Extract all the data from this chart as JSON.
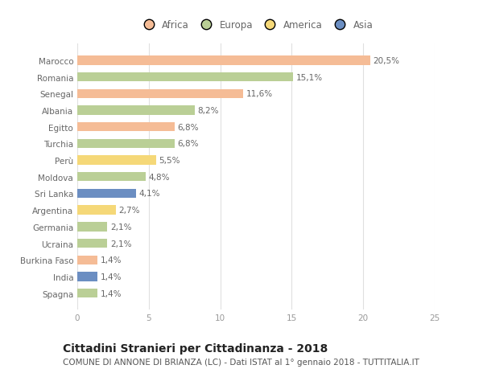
{
  "countries": [
    "Marocco",
    "Romania",
    "Senegal",
    "Albania",
    "Egitto",
    "Turchia",
    "Perù",
    "Moldova",
    "Sri Lanka",
    "Argentina",
    "Germania",
    "Ucraina",
    "Burkina Faso",
    "India",
    "Spagna"
  ],
  "values": [
    20.5,
    15.1,
    11.6,
    8.2,
    6.8,
    6.8,
    5.5,
    4.8,
    4.1,
    2.7,
    2.1,
    2.1,
    1.4,
    1.4,
    1.4
  ],
  "labels": [
    "20,5%",
    "15,1%",
    "11,6%",
    "8,2%",
    "6,8%",
    "6,8%",
    "5,5%",
    "4,8%",
    "4,1%",
    "2,7%",
    "2,1%",
    "2,1%",
    "1,4%",
    "1,4%",
    "1,4%"
  ],
  "continents": [
    "Africa",
    "Europa",
    "Africa",
    "Europa",
    "Africa",
    "Europa",
    "America",
    "Europa",
    "Asia",
    "America",
    "Europa",
    "Europa",
    "Africa",
    "Asia",
    "Europa"
  ],
  "colors": {
    "Africa": "#F5BC96",
    "Europa": "#BACF96",
    "America": "#F5D878",
    "Asia": "#6B8EC2"
  },
  "legend_order": [
    "Africa",
    "Europa",
    "America",
    "Asia"
  ],
  "xlim": [
    0,
    25
  ],
  "xticks": [
    0,
    5,
    10,
    15,
    20,
    25
  ],
  "title": "Cittadini Stranieri per Cittadinanza - 2018",
  "subtitle": "COMUNE DI ANNONE DI BRIANZA (LC) - Dati ISTAT al 1° gennaio 2018 - TUTTITALIA.IT",
  "background_color": "#ffffff",
  "grid_color": "#e0e0e0",
  "bar_height": 0.55,
  "title_fontsize": 10,
  "subtitle_fontsize": 7.5,
  "label_fontsize": 7.5,
  "tick_fontsize": 7.5,
  "legend_fontsize": 8.5
}
